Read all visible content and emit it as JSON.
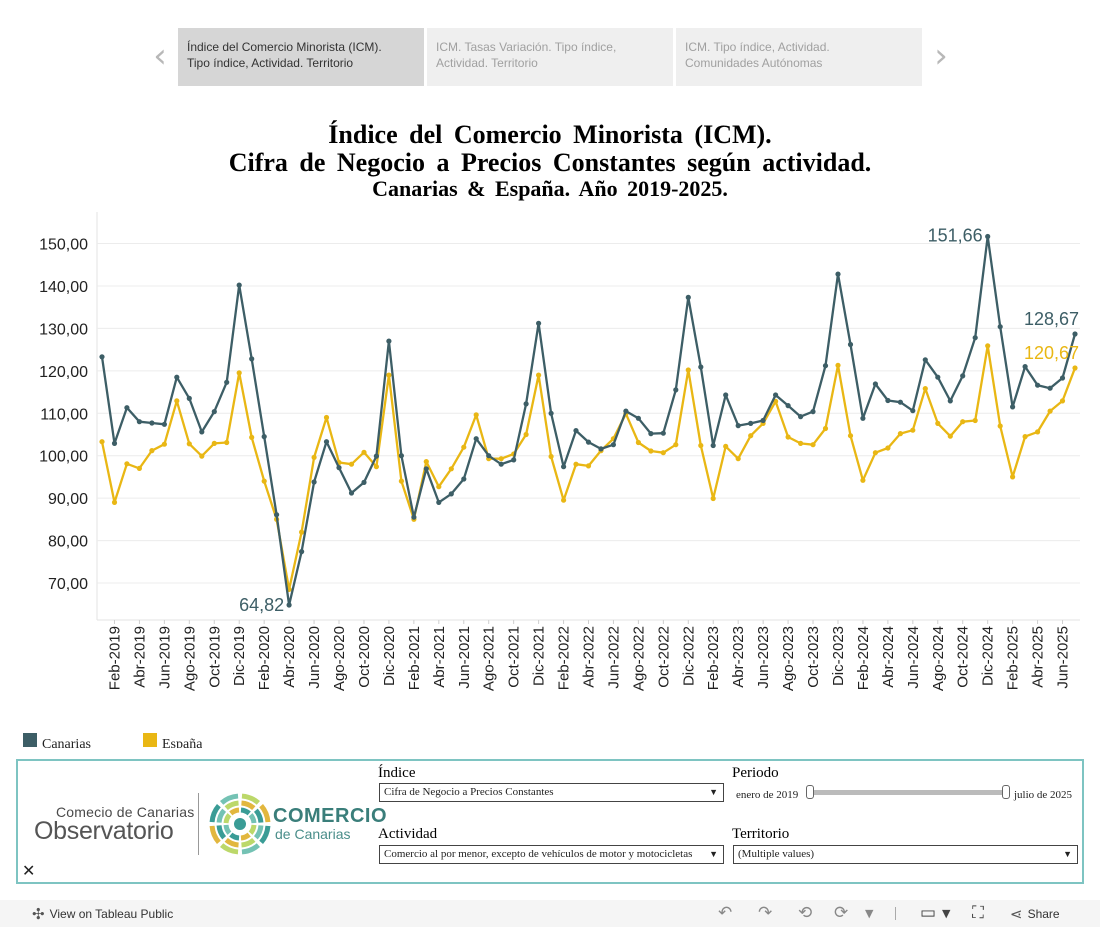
{
  "story": {
    "points": [
      {
        "line1": "Índice del Comercio Minorista (ICM).",
        "line2": "Tipo índice, Actividad. Territorio",
        "active": true
      },
      {
        "line1": "ICM. Tasas Variación. Tipo índice,",
        "line2": "Actividad. Territorio",
        "active": false
      },
      {
        "line1": "ICM. Tipo índice, Actividad.",
        "line2": "Comunidades Autónomas",
        "active": false
      }
    ],
    "prev_icon": "chevron-left-icon",
    "next_icon": "chevron-right-icon"
  },
  "title": {
    "line1": "Índice del Comercio Minorista (ICM).",
    "line2": "Cifra de Negocio a Precios Constantes según actividad.",
    "line3": "Canarias & España. Año 2019-2025."
  },
  "chart_data": {
    "type": "line",
    "title": "Índice del Comercio Minorista (ICM). Cifra de Negocio a Precios Constantes según actividad. Canarias & España. Año 2019-2025.",
    "xlabel": "",
    "ylabel": "",
    "ylim": [
      60,
      157
    ],
    "yticks": [
      70,
      80,
      90,
      100,
      110,
      120,
      130,
      140,
      150
    ],
    "ytick_labels": [
      "70,00",
      "80,00",
      "90,00",
      "100,00",
      "110,00",
      "120,00",
      "130,00",
      "140,00",
      "150,00"
    ],
    "grid": true,
    "legend_position": "bottom-left",
    "x_tick_labels": [
      "Feb-2019",
      "Abr-2019",
      "Jun-2019",
      "Ago-2019",
      "Oct-2019",
      "Dic-2019",
      "Feb-2020",
      "Abr-2020",
      "Jun-2020",
      "Ago-2020",
      "Oct-2020",
      "Dic-2020",
      "Feb-2021",
      "Abr-2021",
      "Jun-2021",
      "Ago-2021",
      "Oct-2021",
      "Dic-2021",
      "Feb-2022",
      "Abr-2022",
      "Jun-2022",
      "Ago-2022",
      "Oct-2022",
      "Dic-2022",
      "Feb-2023",
      "Abr-2023",
      "Jun-2023",
      "Ago-2023",
      "Oct-2023",
      "Dic-2023",
      "Feb-2024",
      "Abr-2024",
      "Jun-2024",
      "Ago-2024",
      "Oct-2024",
      "Dic-2024",
      "Feb-2025",
      "Abr-2025",
      "Jun-2025"
    ],
    "x_start": "Ene-2019",
    "x_end": "Jul-2025",
    "series": [
      {
        "name": "Canarias",
        "color": "#3d5e66",
        "values": [
          123.3,
          102.9,
          111.3,
          108.0,
          107.7,
          107.4,
          118.5,
          113.5,
          105.6,
          110.4,
          117.3,
          140.2,
          122.8,
          104.5,
          86.1,
          64.82,
          77.4,
          93.8,
          103.3,
          97.2,
          91.2,
          93.7,
          99.9,
          127.0,
          100.0,
          85.5,
          96.9,
          89.0,
          91.0,
          94.5,
          104.0,
          100.0,
          98.0,
          99.0,
          112.2,
          131.2,
          110.0,
          97.4,
          105.9,
          103.2,
          101.6,
          102.6,
          110.5,
          108.8,
          105.2,
          105.3,
          115.5,
          137.3,
          120.9,
          102.4,
          114.3,
          107.1,
          107.6,
          108.3,
          114.3,
          111.8,
          109.2,
          110.4,
          121.2,
          142.8,
          126.2,
          108.8,
          116.9,
          113.0,
          112.6,
          110.6,
          122.6,
          118.5,
          112.9,
          118.8,
          127.8,
          151.66,
          130.4,
          111.5,
          121.0,
          116.6,
          115.9,
          118.3,
          128.67
        ]
      },
      {
        "name": "España",
        "color": "#e9b714",
        "values": [
          103.3,
          89.0,
          98.1,
          97.0,
          101.2,
          102.7,
          112.9,
          102.8,
          99.9,
          102.9,
          103.1,
          119.5,
          104.3,
          94.0,
          85.0,
          68.5,
          82.0,
          99.6,
          109.0,
          98.4,
          98.0,
          100.8,
          97.4,
          119.0,
          94.0,
          85.0,
          98.6,
          92.7,
          96.9,
          102.0,
          109.6,
          99.3,
          99.3,
          100.4,
          105.0,
          119.0,
          99.8,
          89.5,
          98.0,
          97.6,
          101.2,
          104.0,
          109.9,
          103.1,
          101.1,
          100.7,
          102.6,
          120.2,
          102.4,
          89.9,
          102.2,
          99.3,
          104.7,
          107.6,
          112.8,
          104.4,
          102.9,
          102.6,
          106.4,
          121.3,
          104.7,
          94.2,
          100.7,
          101.8,
          105.2,
          106.0,
          115.8,
          107.6,
          104.6,
          108.0,
          108.3,
          125.9,
          107.0,
          95.0,
          104.5,
          105.6,
          110.5,
          112.9,
          120.67
        ]
      }
    ],
    "annotations": [
      {
        "label": "151,66",
        "series": 0,
        "index": 71,
        "placement": "left"
      },
      {
        "label": "64,82",
        "series": 0,
        "index": 15,
        "placement": "left"
      },
      {
        "label": "128,67",
        "series": 0,
        "index": 78,
        "placement": "above"
      },
      {
        "label": "120,67",
        "series": 1,
        "index": 78,
        "placement": "above"
      }
    ]
  },
  "legend": [
    {
      "label": "Canarias",
      "color": "#3d5e66"
    },
    {
      "label": "España",
      "color": "#e9b714"
    }
  ],
  "panel": {
    "observatorio_line1": "Comecio de Canarias",
    "observatorio_line2": "Observatorio",
    "comercio_line1": "COMERCIO",
    "comercio_line2": "de Canarias",
    "logo_colors": [
      "#3a9c96",
      "#74c2b4",
      "#bcd86a",
      "#e2b73e"
    ],
    "indice_label": "Índice",
    "indice_value": "Cifra de Negocio a Precios Constantes",
    "actividad_label": "Actividad",
    "actividad_value": "Comercio al por menor, excepto de vehículos de motor y motocicletas",
    "periodo_label": "Periodo",
    "periodo_start": "enero de 2019",
    "periodo_end": "julio de 2025",
    "territorio_label": "Territorio",
    "territorio_value": "(Multiple values)",
    "close_icon": "close-icon"
  },
  "toolbar": {
    "view_label": "View on Tableau Public",
    "share_label": "Share"
  }
}
